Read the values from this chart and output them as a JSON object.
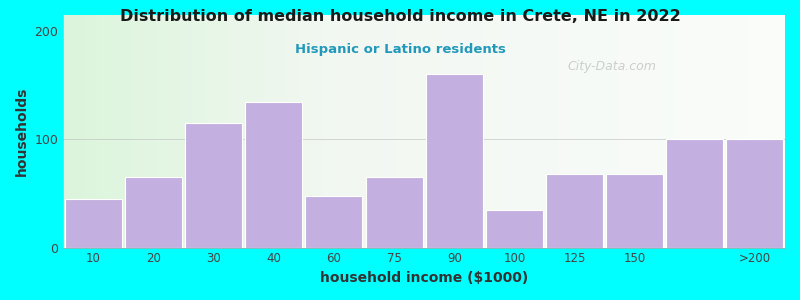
{
  "title": "Distribution of median household income in Crete, NE in 2022",
  "subtitle": "Hispanic or Latino residents",
  "xlabel": "household income ($1000)",
  "ylabel": "households",
  "background_color": "#00FFFF",
  "bar_color": "#C4B0E0",
  "bar_edge_color": "#FFFFFF",
  "title_color": "#1A1A1A",
  "subtitle_color": "#2299BB",
  "axis_label_color": "#333333",
  "tick_color": "#444444",
  "bar_lefts": [
    0,
    1,
    2,
    3,
    4,
    5,
    6,
    7,
    8,
    9,
    10,
    11
  ],
  "bar_widths": [
    1,
    1,
    1,
    1,
    1,
    1,
    1,
    1,
    1,
    1,
    1,
    1
  ],
  "bar_heights": [
    45,
    65,
    115,
    135,
    48,
    65,
    160,
    35,
    68,
    68,
    100,
    100
  ],
  "xtick_positions": [
    0.5,
    1.5,
    2.5,
    3.5,
    4.5,
    5.5,
    6.5,
    7.5,
    8.5,
    9.5,
    10.5,
    11.5
  ],
  "xtick_labels": [
    "10",
    "20",
    "30",
    "40",
    "60",
    "75",
    "90",
    "100",
    "125",
    "150",
    "",
    ">200"
  ],
  "ylim": [
    0,
    215
  ],
  "yticks": [
    0,
    100,
    200
  ],
  "watermark": "City-Data.com"
}
